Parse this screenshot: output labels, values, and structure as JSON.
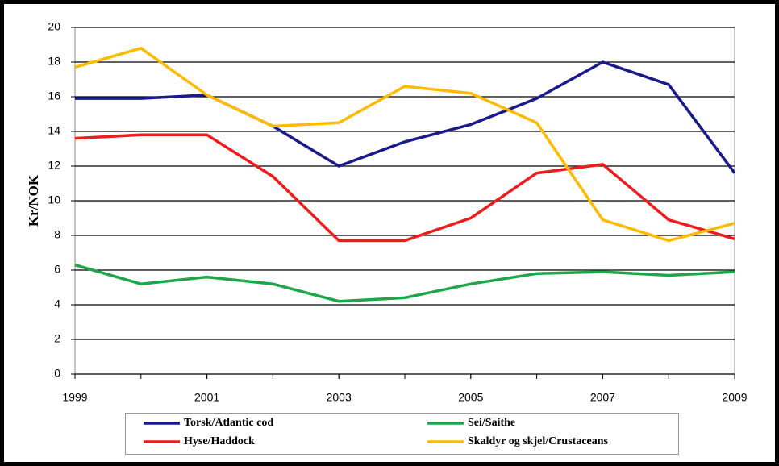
{
  "chart_data": {
    "type": "line",
    "y_label": "Kr/NOK",
    "x": [
      1999,
      2000,
      2001,
      2002,
      2003,
      2004,
      2005,
      2006,
      2007,
      2008,
      2009
    ],
    "xlim": [
      1999,
      2009
    ],
    "xticks": [
      1999,
      2001,
      2003,
      2005,
      2007,
      2009
    ],
    "ylim": [
      0,
      20
    ],
    "yticks": [
      0,
      2,
      4,
      6,
      8,
      10,
      12,
      14,
      16,
      18,
      20
    ],
    "grid": true,
    "series": [
      {
        "name": "Torsk/Atlantic cod",
        "color": "#1a1a8a",
        "values": [
          15.9,
          15.9,
          16.1,
          14.3,
          12.0,
          13.4,
          14.4,
          15.9,
          18.0,
          16.7,
          11.6
        ]
      },
      {
        "name": "Sei/Saithe",
        "color": "#1fa64a",
        "values": [
          6.3,
          5.2,
          5.6,
          5.2,
          4.2,
          4.4,
          5.2,
          5.8,
          5.9,
          5.7,
          5.9
        ]
      },
      {
        "name": "Hyse/Haddock",
        "color": "#ee1c1c",
        "values": [
          13.6,
          13.8,
          13.8,
          11.4,
          7.7,
          7.7,
          9.0,
          11.6,
          12.1,
          8.9,
          7.8
        ]
      },
      {
        "name": "Skaldyr og skjel/Crustaceans",
        "color": "#ffbb00",
        "values": [
          17.7,
          18.8,
          16.1,
          14.3,
          14.5,
          16.6,
          16.2,
          14.5,
          8.9,
          7.7,
          8.7
        ]
      }
    ]
  }
}
